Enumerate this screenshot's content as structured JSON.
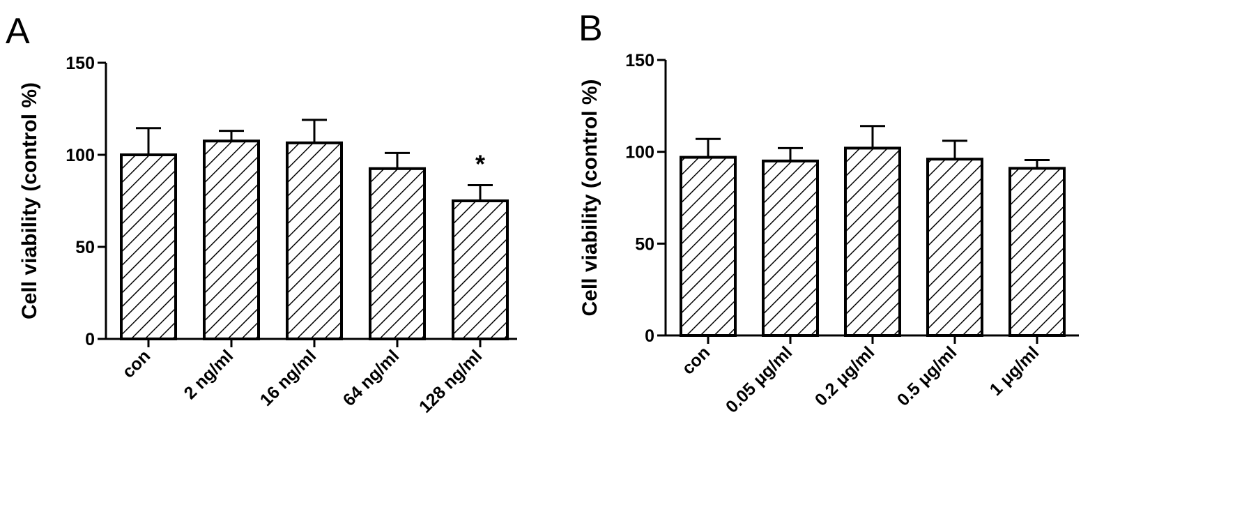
{
  "chart_data": [
    {
      "type": "bar",
      "panel": "A",
      "ylabel": "Cell viability (control %)",
      "ylim": [
        0,
        150
      ],
      "yticks": [
        "0",
        "50",
        "100",
        "150"
      ],
      "categories": [
        "con",
        "2 ng/ml",
        "16 ng/ml",
        "64 ng/ml",
        "128 ng/ml"
      ],
      "values": [
        100,
        107.5,
        106.5,
        92.5,
        75
      ],
      "errors": [
        14.5,
        5.5,
        12.5,
        8.5,
        8.5
      ],
      "annotations": [
        "",
        "",
        "",
        "",
        "*"
      ],
      "bar_fill": "diagonal-hatch",
      "grid": false,
      "legend": "none"
    },
    {
      "type": "bar",
      "panel": "B",
      "ylabel": "Cell viability (control %)",
      "ylim": [
        0,
        150
      ],
      "yticks": [
        "0",
        "50",
        "100",
        "150"
      ],
      "categories": [
        "con",
        "0.05 μg/ml",
        "0.2 μg/ml",
        "0.5 μg/ml",
        "1 μg/ml"
      ],
      "values": [
        97,
        95,
        102,
        96,
        91
      ],
      "errors": [
        10,
        7,
        12,
        10,
        4.5
      ],
      "annotations": [
        "",
        "",
        "",
        "",
        ""
      ],
      "bar_fill": "diagonal-hatch",
      "grid": false,
      "legend": "none"
    }
  ]
}
